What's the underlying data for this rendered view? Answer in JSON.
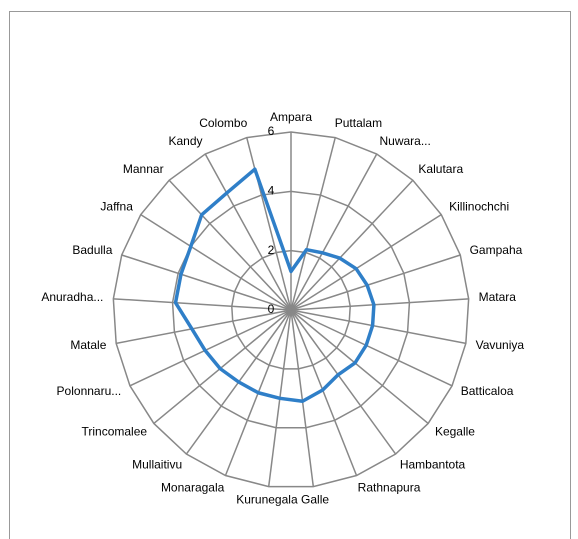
{
  "chart_data": {
    "type": "radar",
    "categories": [
      "Ampara",
      "Puttalam",
      "Nuwara...",
      "Kalutara",
      "Killinochchi",
      "Gampaha",
      "Matara",
      "Vavuniya",
      "Batticaloa",
      "Kegalle",
      "Hambantota",
      "Rathnapura",
      "Galle",
      "Kurunegala",
      "Monaragala",
      "Mullaitivu",
      "Trincomalee",
      "Polonnaru...",
      "Matale",
      "Anuradha...",
      "Badulla",
      "Jaffna",
      "Mannar",
      "Kandy",
      "Colombo"
    ],
    "values": [
      1.3,
      2.1,
      2.2,
      2.4,
      2.6,
      2.7,
      2.8,
      2.8,
      2.8,
      2.8,
      2.7,
      2.9,
      3.1,
      3.0,
      3.0,
      3.0,
      3.1,
      3.2,
      3.4,
      3.9,
      3.9,
      4.0,
      4.4,
      4.5,
      4.9
    ],
    "color": "#2f7fc8",
    "ylim": [
      0,
      6
    ],
    "yticks": [
      0,
      2,
      4,
      6
    ],
    "grid": true
  }
}
